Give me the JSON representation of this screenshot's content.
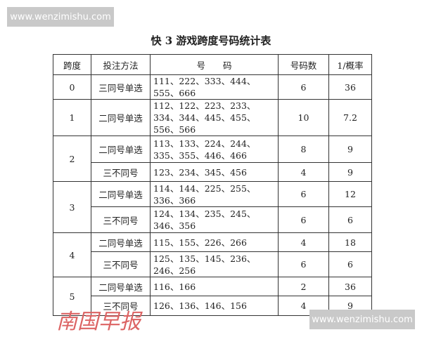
{
  "watermarks": {
    "top": "www.wenzimishu.com",
    "bottom": "www.wenzimishu.com",
    "stamp": "南国早报"
  },
  "title": "快 3 游戏跨度号码统计表",
  "headers": [
    "跨度",
    "投注方法",
    "号　　码",
    "号码数",
    "1/概率"
  ],
  "groups": [
    {
      "span": "0",
      "rows": [
        {
          "method": "三同号单选",
          "numbers": "111、222、333、444、555、666",
          "count": "6",
          "inv_prob": "36"
        }
      ]
    },
    {
      "span": "1",
      "rows": [
        {
          "method": "二同号单选",
          "numbers": "112、122、223、233、334、344、445、455、556、566",
          "count": "10",
          "inv_prob": "7.2"
        }
      ]
    },
    {
      "span": "2",
      "rows": [
        {
          "method": "二同号单选",
          "numbers": "113、133、224、244、335、355、446、466",
          "count": "8",
          "inv_prob": "9"
        },
        {
          "method": "三不同号",
          "numbers": "123、234、345、456",
          "count": "4",
          "inv_prob": "9"
        }
      ]
    },
    {
      "span": "3",
      "rows": [
        {
          "method": "二同号单选",
          "numbers": "114、144、225、255、336、366",
          "count": "6",
          "inv_prob": "12"
        },
        {
          "method": "三不同号",
          "numbers": "124、134、235、245、346、356",
          "count": "6",
          "inv_prob": "6"
        }
      ]
    },
    {
      "span": "4",
      "rows": [
        {
          "method": "二同号单选",
          "numbers": "115、155、226、266",
          "count": "4",
          "inv_prob": "18"
        },
        {
          "method": "三不同号",
          "numbers": "125、135、145、236、246、256",
          "count": "6",
          "inv_prob": "6"
        }
      ]
    },
    {
      "span": "5",
      "rows": [
        {
          "method": "二同号单选",
          "numbers": "116、166",
          "count": "2",
          "inv_prob": "36"
        },
        {
          "method": "三不同号",
          "numbers": "126、136、146、156",
          "count": "4",
          "inv_prob": "9"
        }
      ]
    }
  ]
}
